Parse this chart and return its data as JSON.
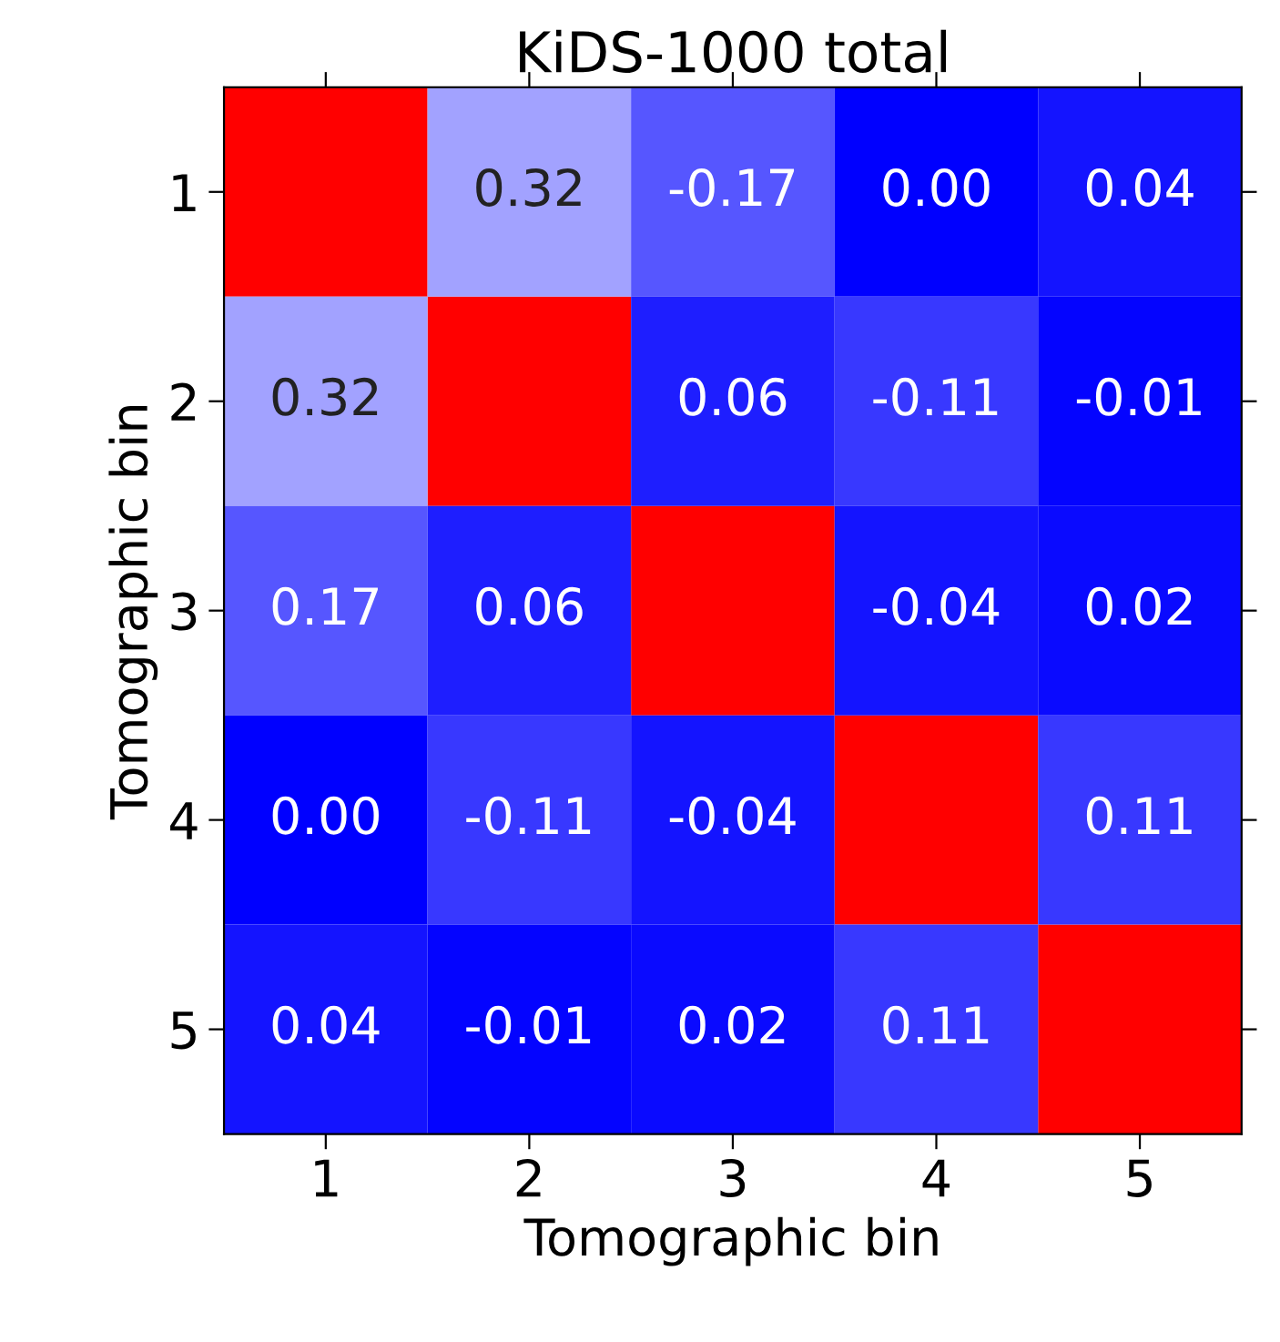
{
  "chart_data": {
    "type": "heatmap",
    "title": "KiDS-1000 total",
    "xlabel": "Tomographic bin",
    "ylabel": "Tomographic bin",
    "categories": [
      "1",
      "2",
      "3",
      "4",
      "5"
    ],
    "y_categories": [
      "1",
      "2",
      "3",
      "4",
      "5"
    ],
    "cells": [
      [
        null,
        0.32,
        -0.17,
        0.0,
        0.04
      ],
      [
        0.32,
        null,
        0.06,
        -0.11,
        -0.01
      ],
      [
        0.17,
        0.06,
        null,
        -0.04,
        0.02
      ],
      [
        0.0,
        -0.11,
        -0.04,
        null,
        0.11
      ],
      [
        0.04,
        -0.01,
        0.02,
        0.11,
        null
      ]
    ],
    "cell_labels": [
      [
        null,
        "0.32",
        "-0.17",
        "0.00",
        "0.04"
      ],
      [
        "0.32",
        null,
        "0.06",
        "-0.11",
        "-0.01"
      ],
      [
        "0.17",
        "0.06",
        null,
        "-0.04",
        "0.02"
      ],
      [
        "0.00",
        "-0.11",
        "-0.04",
        null,
        "0.11"
      ],
      [
        "0.04",
        "-0.01",
        "0.02",
        "0.11",
        null
      ]
    ]
  }
}
